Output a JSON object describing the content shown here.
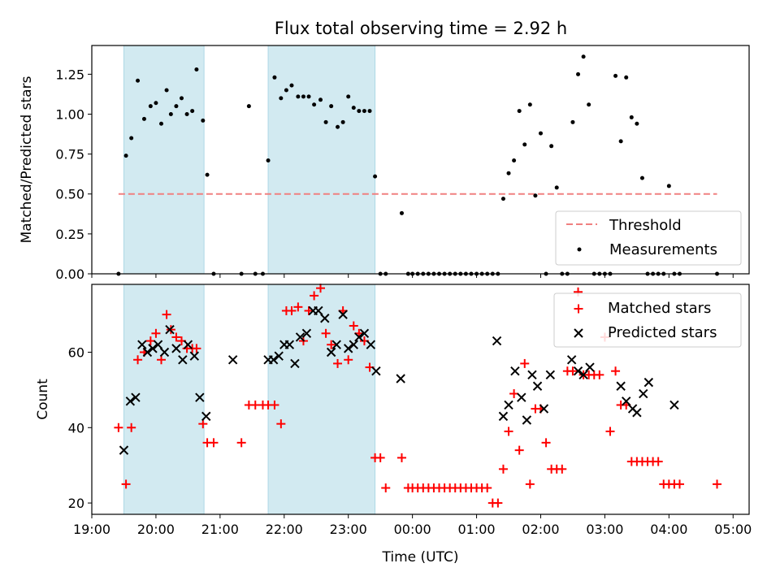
{
  "title": "Flux total observing time = 2.92 h",
  "chart_data": [
    {
      "type": "scatter",
      "xlabel": "",
      "ylabel": "Matched/Predicted stars",
      "xlim": [
        "19:00",
        "05:15"
      ],
      "ylim": [
        0,
        1.43
      ],
      "y_ticks": [
        "0.00",
        "0.25",
        "0.50",
        "0.75",
        "1.00",
        "1.25"
      ],
      "grid": false,
      "legend_position": "lower-right",
      "shaded_intervals": [
        [
          "19:30",
          "20:45"
        ],
        [
          "21:45",
          "23:25"
        ]
      ],
      "shade_color": "#add8e6",
      "threshold": {
        "name": "Threshold",
        "value": 0.5,
        "x_start": "19:25",
        "x_end": "04:45",
        "color": "#f08080"
      },
      "series": [
        {
          "name": "Measurements",
          "color": "#000000",
          "marker": "dot",
          "x": [
            "19:25",
            "19:32",
            "19:37",
            "19:43",
            "19:49",
            "19:55",
            "20:00",
            "20:05",
            "20:10",
            "20:14",
            "20:19",
            "20:24",
            "20:29",
            "20:34",
            "20:38",
            "20:44",
            "20:48",
            "20:54",
            "21:20",
            "21:27",
            "21:33",
            "21:40",
            "21:45",
            "21:51",
            "21:57",
            "22:02",
            "22:07",
            "22:13",
            "22:18",
            "22:23",
            "22:28",
            "22:34",
            "22:39",
            "22:44",
            "22:50",
            "22:55",
            "23:00",
            "23:05",
            "23:10",
            "23:15",
            "23:20",
            "23:25",
            "23:30",
            "23:35",
            "23:50",
            "23:56",
            "00:00",
            "00:05",
            "00:10",
            "00:15",
            "00:20",
            "00:25",
            "00:30",
            "00:35",
            "00:40",
            "00:45",
            "00:50",
            "00:55",
            "01:00",
            "01:05",
            "01:10",
            "01:15",
            "01:20",
            "01:25",
            "01:30",
            "01:35",
            "01:40",
            "01:45",
            "01:50",
            "01:55",
            "02:00",
            "02:05",
            "02:10",
            "02:15",
            "02:20",
            "02:25",
            "02:30",
            "02:35",
            "02:40",
            "02:45",
            "02:50",
            "02:55",
            "03:00",
            "03:05",
            "03:10",
            "03:15",
            "03:20",
            "03:25",
            "03:30",
            "03:35",
            "03:40",
            "03:45",
            "03:50",
            "03:55",
            "04:00",
            "04:05",
            "04:10",
            "04:45"
          ],
          "y": [
            0,
            0.74,
            0.85,
            1.21,
            0.97,
            1.05,
            1.07,
            0.94,
            1.15,
            1.0,
            1.05,
            1.1,
            1.0,
            1.02,
            1.28,
            0.96,
            0.62,
            0,
            0,
            1.05,
            0,
            0,
            0.71,
            1.23,
            1.1,
            1.15,
            1.18,
            1.11,
            1.11,
            1.11,
            1.06,
            1.09,
            0.95,
            1.05,
            0.92,
            0.95,
            1.11,
            1.04,
            1.02,
            1.02,
            1.02,
            0.61,
            0,
            0,
            0.38,
            0,
            0,
            0,
            0,
            0,
            0,
            0,
            0,
            0,
            0,
            0,
            0,
            0,
            0,
            0,
            0,
            0,
            0,
            0.47,
            0.63,
            0.71,
            1.02,
            0.81,
            1.06,
            0.49,
            0.88,
            0,
            0.8,
            0.54,
            0,
            0,
            0.95,
            1.25,
            1.36,
            1.06,
            0,
            0,
            0,
            0,
            1.24,
            0.83,
            1.23,
            0.98,
            0.94,
            0.6,
            0,
            0,
            0,
            0,
            0.55,
            0,
            0,
            0
          ]
        }
      ]
    },
    {
      "type": "scatter",
      "xlabel": "Time (UTC)",
      "ylabel": "Count",
      "xlim": [
        "19:00",
        "05:15"
      ],
      "ylim": [
        17,
        78
      ],
      "x_ticks": [
        "19:00",
        "20:00",
        "21:00",
        "22:00",
        "23:00",
        "00:00",
        "01:00",
        "02:00",
        "03:00",
        "04:00",
        "05:00"
      ],
      "y_ticks": [
        20,
        40,
        60
      ],
      "grid": false,
      "legend_position": "upper-right",
      "shaded_intervals": [
        [
          "19:30",
          "20:45"
        ],
        [
          "21:45",
          "23:25"
        ]
      ],
      "shade_color": "#add8e6",
      "series": [
        {
          "name": "Matched stars",
          "color": "#ff0000",
          "marker": "plus",
          "x": [
            "19:25",
            "19:32",
            "19:37",
            "19:43",
            "19:49",
            "19:55",
            "20:00",
            "20:05",
            "20:10",
            "20:14",
            "20:19",
            "20:24",
            "20:29",
            "20:34",
            "20:38",
            "20:44",
            "20:48",
            "20:54",
            "21:20",
            "21:27",
            "21:33",
            "21:40",
            "21:45",
            "21:51",
            "21:57",
            "22:02",
            "22:07",
            "22:13",
            "22:18",
            "22:23",
            "22:28",
            "22:34",
            "22:39",
            "22:44",
            "22:50",
            "22:55",
            "23:00",
            "23:05",
            "23:10",
            "23:15",
            "23:20",
            "23:25",
            "23:30",
            "23:35",
            "23:50",
            "23:56",
            "00:00",
            "00:05",
            "00:10",
            "00:15",
            "00:20",
            "00:25",
            "00:30",
            "00:35",
            "00:40",
            "00:45",
            "00:50",
            "00:55",
            "01:00",
            "01:05",
            "01:10",
            "01:15",
            "01:20",
            "01:25",
            "01:30",
            "01:35",
            "01:40",
            "01:45",
            "01:50",
            "01:55",
            "02:00",
            "02:05",
            "02:10",
            "02:15",
            "02:20",
            "02:25",
            "02:30",
            "02:35",
            "02:40",
            "02:45",
            "02:50",
            "02:55",
            "03:00",
            "03:05",
            "03:10",
            "03:15",
            "03:20",
            "03:25",
            "03:30",
            "03:35",
            "03:40",
            "03:45",
            "03:50",
            "03:55",
            "04:00",
            "04:05",
            "04:10",
            "04:45"
          ],
          "y": [
            40,
            25,
            40,
            58,
            60,
            63,
            65,
            58,
            70,
            66,
            64,
            63,
            61,
            61,
            61,
            41,
            36,
            36,
            36,
            46,
            46,
            46,
            46,
            46,
            41,
            71,
            71,
            72,
            63,
            71,
            75,
            77,
            65,
            62,
            57,
            71,
            58,
            67,
            65,
            63,
            56,
            32,
            32,
            24,
            32,
            24,
            24,
            24,
            24,
            24,
            24,
            24,
            24,
            24,
            24,
            24,
            24,
            24,
            24,
            24,
            24,
            20,
            20,
            29,
            39,
            49,
            34,
            57,
            25,
            45,
            45,
            36,
            29,
            29,
            29,
            55,
            55,
            76,
            54,
            54,
            54,
            54,
            64,
            39,
            55,
            46,
            46,
            31,
            31,
            31,
            31,
            31,
            31,
            25,
            25,
            25,
            25,
            25
          ]
        },
        {
          "name": "Predicted stars",
          "color": "#000000",
          "marker": "x",
          "x": [
            "19:30",
            "19:36",
            "19:41",
            "19:47",
            "19:52",
            "19:57",
            "20:02",
            "20:08",
            "20:13",
            "20:19",
            "20:25",
            "20:30",
            "20:36",
            "20:41",
            "20:47",
            "21:12",
            "21:45",
            "21:50",
            "21:55",
            "22:00",
            "22:05",
            "22:10",
            "22:15",
            "22:21",
            "22:27",
            "22:32",
            "22:38",
            "22:44",
            "22:49",
            "22:55",
            "23:00",
            "23:05",
            "23:10",
            "23:15",
            "23:21",
            "23:26",
            "23:49",
            "01:19",
            "01:25",
            "01:30",
            "01:36",
            "01:42",
            "01:47",
            "01:52",
            "01:57",
            "02:03",
            "02:09",
            "02:29",
            "02:35",
            "02:40",
            "02:46",
            "03:15",
            "03:20",
            "03:26",
            "03:30",
            "03:36",
            "03:41",
            "04:05"
          ],
          "y": [
            34,
            47,
            48,
            62,
            60,
            61,
            62,
            60,
            66,
            61,
            58,
            62,
            59,
            48,
            43,
            58,
            58,
            58,
            59,
            62,
            62,
            57,
            64,
            65,
            71,
            71,
            69,
            60,
            62,
            70,
            61,
            62,
            64,
            65,
            62,
            55,
            53,
            63,
            43,
            46,
            55,
            48,
            42,
            54,
            51,
            45,
            54,
            58,
            55,
            54,
            56,
            51,
            47,
            45,
            44,
            49,
            52,
            46
          ]
        }
      ]
    }
  ]
}
